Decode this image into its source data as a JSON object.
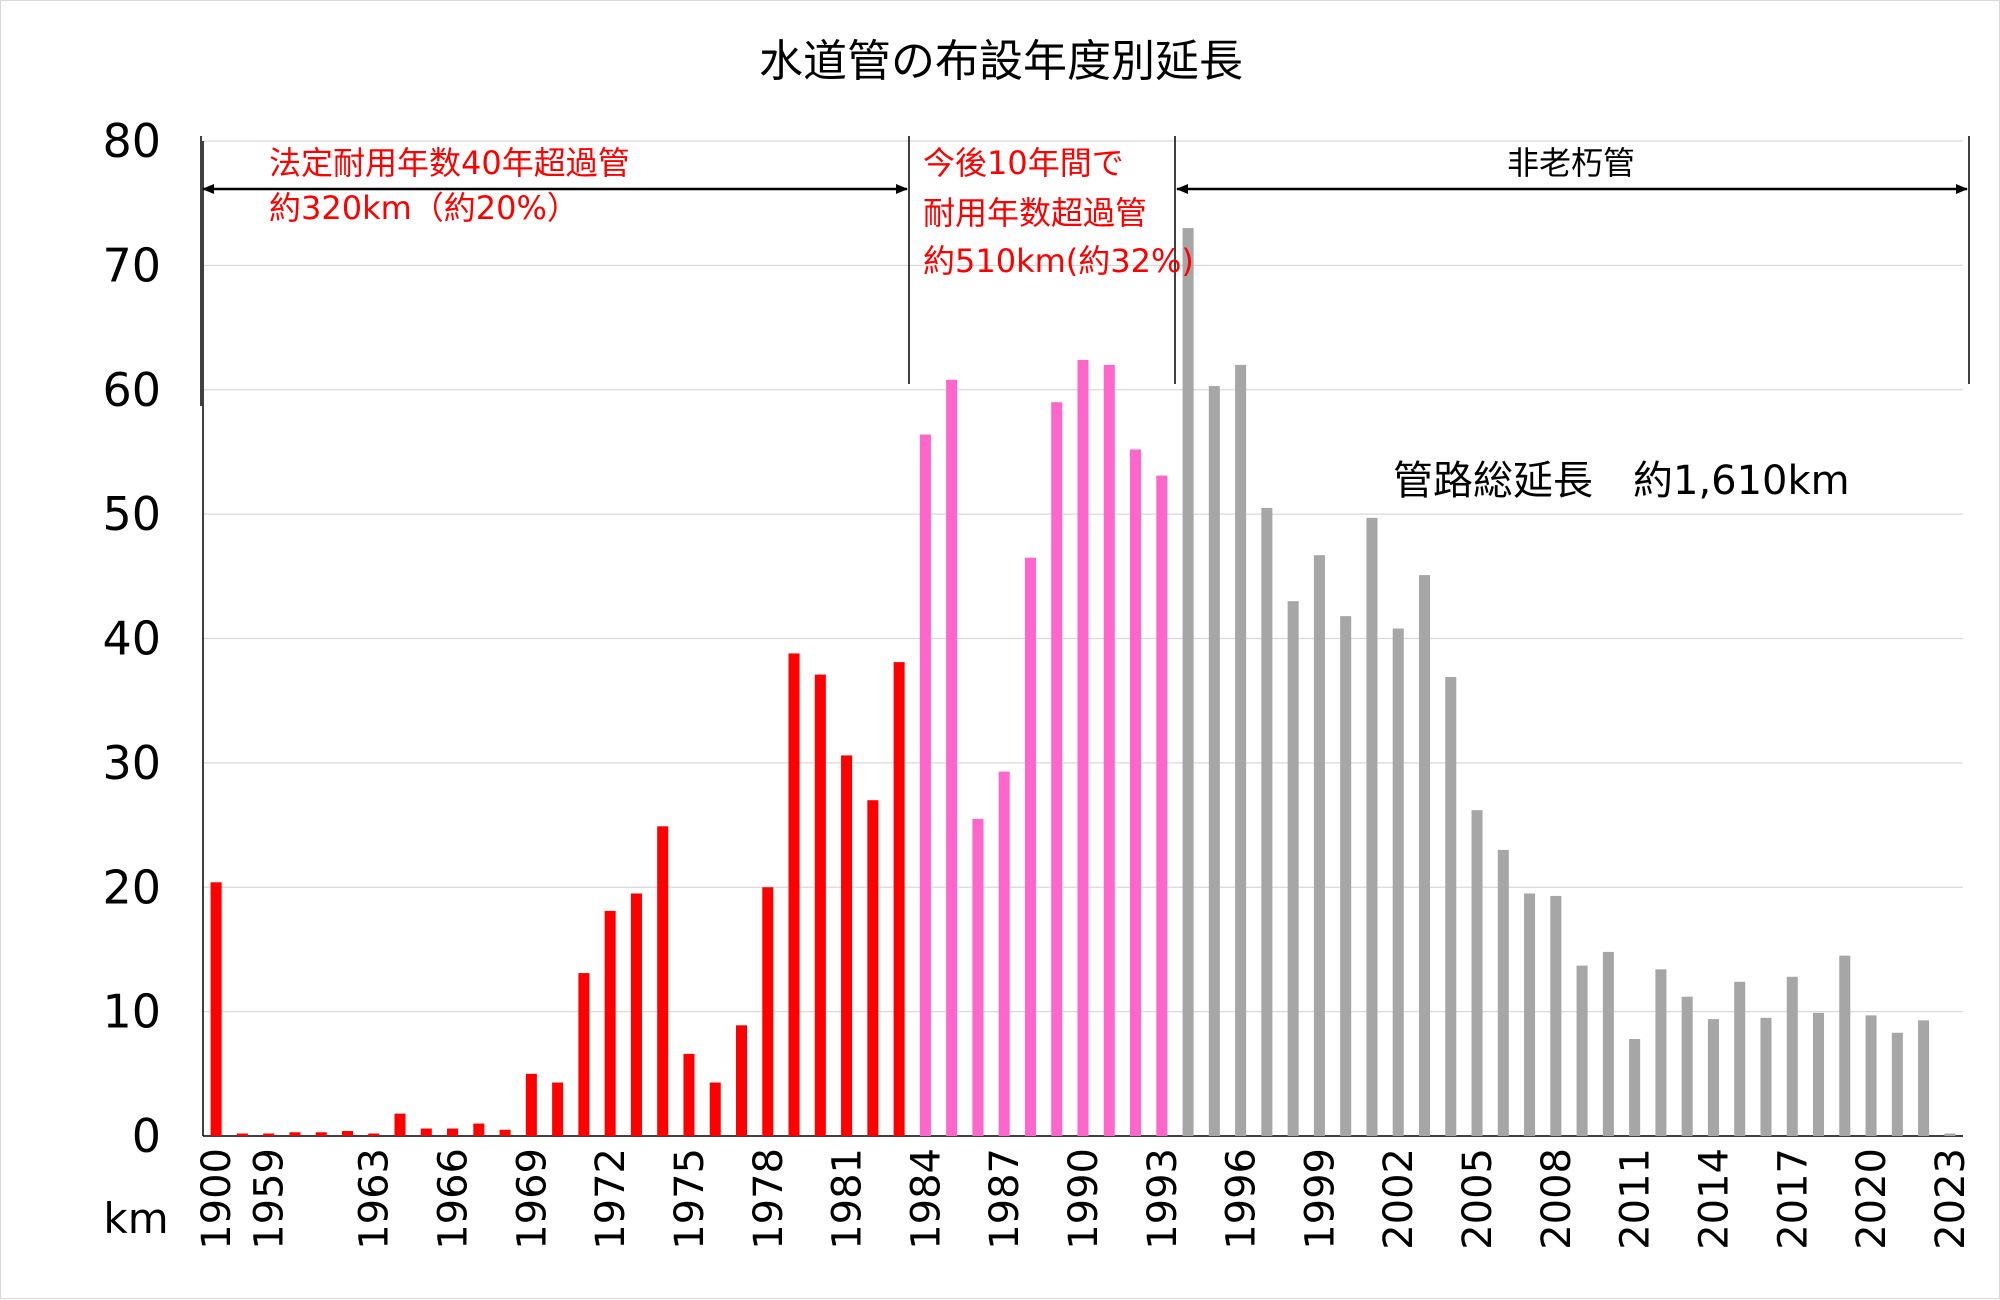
{
  "chart_data": {
    "type": "bar",
    "title": "水道管の布設年度別延長",
    "ylabel": "km",
    "xlabel": "",
    "ylim": [
      0,
      80
    ],
    "yticks": [
      0,
      10,
      20,
      30,
      40,
      50,
      60,
      70,
      80
    ],
    "grid": true,
    "categories": [
      "1900",
      "1958",
      "1959",
      "1960",
      "1961",
      "1962",
      "1963",
      "1964",
      "1965",
      "1966",
      "1967",
      "1968",
      "1969",
      "1970",
      "1971",
      "1972",
      "1973",
      "1974",
      "1975",
      "1976",
      "1977",
      "1978",
      "1979",
      "1980",
      "1981",
      "1982",
      "1983",
      "1984",
      "1985",
      "1986",
      "1987",
      "1988",
      "1989",
      "1990",
      "1991",
      "1992",
      "1993",
      "1994",
      "1995",
      "1996",
      "1997",
      "1998",
      "1999",
      "2000",
      "2001",
      "2002",
      "2003",
      "2004",
      "2005",
      "2006",
      "2007",
      "2008",
      "2009",
      "2010",
      "2011",
      "2012",
      "2013",
      "2014",
      "2015",
      "2016",
      "2017",
      "2018",
      "2019",
      "2020",
      "2021",
      "2022",
      "2023"
    ],
    "tick_labels": [
      "1900",
      "1959",
      "1963",
      "1966",
      "1969",
      "1972",
      "1975",
      "1978",
      "1981",
      "1984",
      "1987",
      "1990",
      "1993",
      "1996",
      "1999",
      "2002",
      "2005",
      "2008",
      "2011",
      "2014",
      "2017",
      "2020",
      "2023"
    ],
    "values": [
      20.4,
      0.2,
      0.2,
      0.3,
      0.3,
      0.4,
      0.2,
      1.8,
      0.6,
      0.6,
      1.0,
      0.5,
      5.0,
      4.3,
      13.1,
      18.1,
      19.5,
      24.9,
      6.6,
      4.3,
      8.9,
      20.0,
      38.8,
      37.1,
      30.6,
      27.0,
      38.1,
      56.4,
      60.8,
      25.5,
      29.3,
      46.5,
      59.0,
      62.4,
      62.0,
      55.2,
      53.1,
      73.0,
      60.3,
      62.0,
      50.5,
      43.0,
      46.7,
      41.8,
      49.7,
      40.8,
      45.1,
      36.9,
      26.2,
      23.0,
      19.5,
      19.3,
      13.7,
      14.8,
      7.8,
      13.4,
      11.2,
      9.4,
      12.4,
      9.5,
      12.8,
      9.9,
      14.5,
      9.7,
      8.3,
      9.3,
      0.2
    ],
    "colors": {
      "old": "#ff0000",
      "soon": "#ff66cc",
      "new": "#a6a6a6",
      "grid": "#d9d9d9",
      "axis": "#000000"
    },
    "annotations": [
      {
        "lines": [
          "法定耐用年数40年超過管",
          "約320km（約20%）"
        ],
        "color": "#ff0000"
      },
      {
        "lines": [
          "今後10年間で",
          "耐用年数超過管",
          "約510km(約32%)"
        ],
        "color": "#ff0000"
      },
      {
        "lines": [
          "非老朽管"
        ],
        "color": "#000000"
      },
      {
        "lines": [
          "管路総延長　約1,610km"
        ],
        "color": "#000000"
      }
    ]
  }
}
